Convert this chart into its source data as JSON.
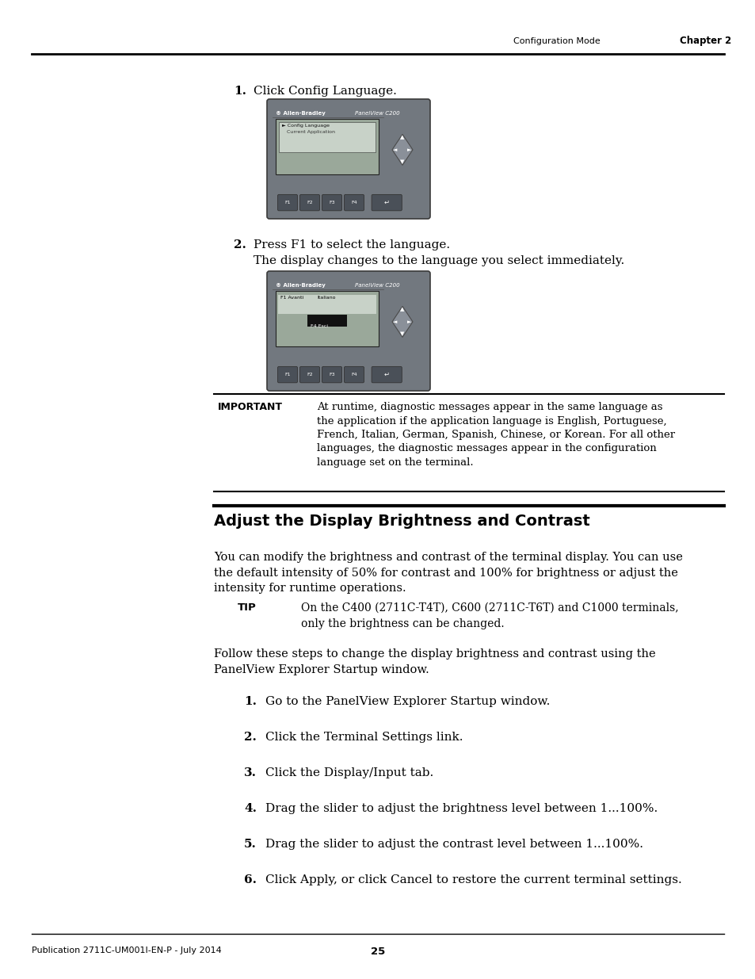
{
  "bg_color": "#ffffff",
  "header_right_text": "Configuration Mode",
  "header_chapter": "Chapter 2",
  "footer_left": "Publication 2711C-UM001I-EN-P - July 2014",
  "footer_center": "25",
  "step1_label": "1.",
  "step1_text": "Click Config Language.",
  "step2_label": "2.",
  "step2_text": "Press F1 to select the language.",
  "step2_sub": "The display changes to the language you select immediately.",
  "important_label": "IMPORTANT",
  "important_text": "At runtime, diagnostic messages appear in the same language as\nthe application if the application language is English, Portuguese,\nFrench, Italian, German, Spanish, Chinese, or Korean. For all other\nlanguages, the diagnostic messages appear in the configuration\nlanguage set on the terminal.",
  "section_title": "Adjust the Display Brightness and Contrast",
  "section_para": "You can modify the brightness and contrast of the terminal display. You can use\nthe default intensity of 50% for contrast and 100% for brightness or adjust the\nintensity for runtime operations.",
  "tip_label": "TIP",
  "tip_text": "On the C400 (2711C-T4T), C600 (2711C-T6T) and C1000 terminals,\nonly the brightness can be changed.",
  "follow_text": "Follow these steps to change the display brightness and contrast using the\nPanelView Explorer Startup window.",
  "steps": [
    "Go to the PanelView Explorer Startup window.",
    "Click the Terminal Settings link.",
    "Click the Display/Input tab.",
    "Drag the slider to adjust the brightness level between 1...100%.",
    "Drag the slider to adjust the contrast level between 1...100%.",
    "Click Apply, or click Cancel to restore the current terminal settings."
  ]
}
